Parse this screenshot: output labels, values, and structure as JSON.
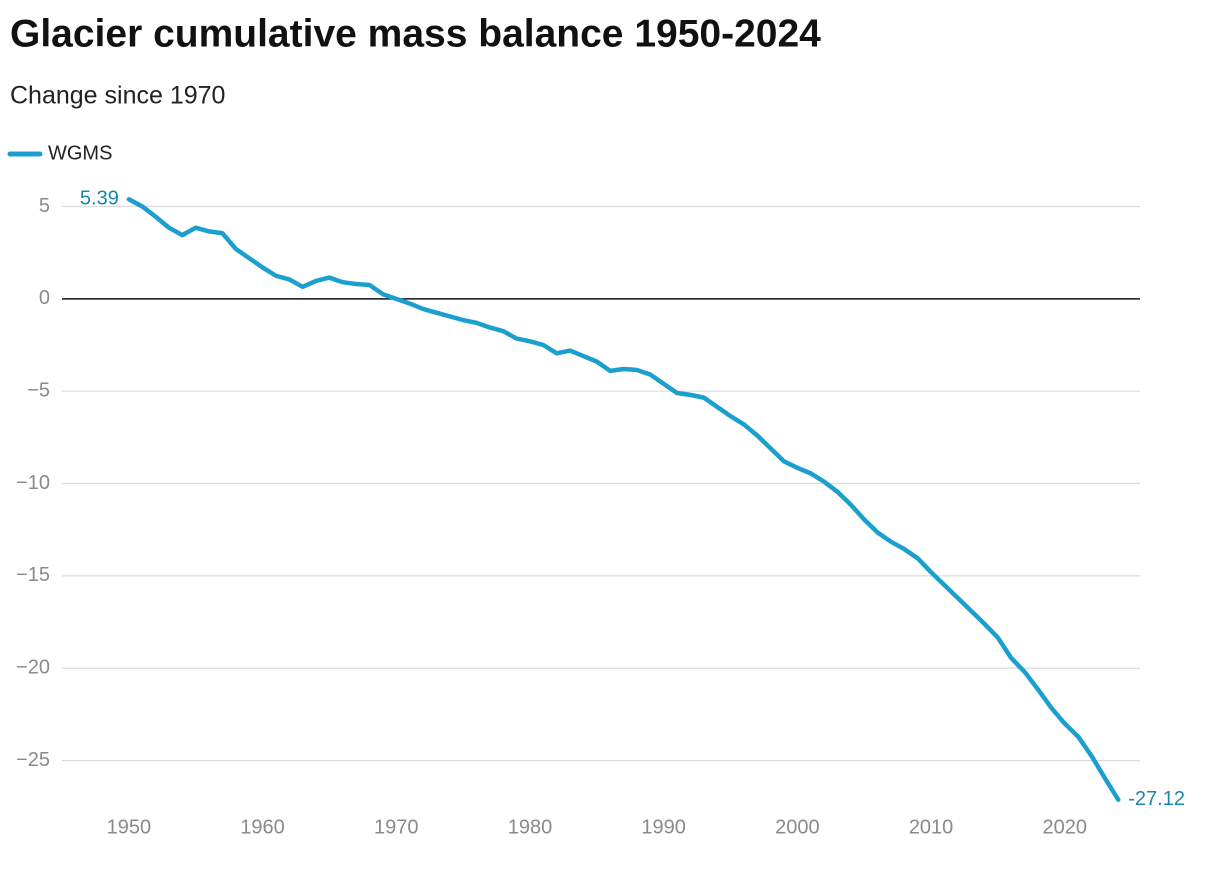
{
  "chart_data": {
    "type": "line",
    "title": "Glacier cumulative mass balance 1950-2024",
    "subtitle": "Change since 1970",
    "x": [
      1950,
      1951,
      1952,
      1953,
      1954,
      1955,
      1956,
      1957,
      1958,
      1959,
      1960,
      1961,
      1962,
      1963,
      1964,
      1965,
      1966,
      1967,
      1968,
      1969,
      1970,
      1971,
      1972,
      1973,
      1974,
      1975,
      1976,
      1977,
      1978,
      1979,
      1980,
      1981,
      1982,
      1983,
      1984,
      1985,
      1986,
      1987,
      1988,
      1989,
      1990,
      1991,
      1992,
      1993,
      1994,
      1995,
      1996,
      1997,
      1998,
      1999,
      2000,
      2001,
      2002,
      2003,
      2004,
      2005,
      2006,
      2007,
      2008,
      2009,
      2010,
      2011,
      2012,
      2013,
      2014,
      2015,
      2016,
      2017,
      2018,
      2019,
      2020,
      2021,
      2022,
      2023,
      2024
    ],
    "series": [
      {
        "name": "WGMS",
        "color": "#1a9fcf",
        "values": [
          5.39,
          5.0,
          4.45,
          3.85,
          3.45,
          3.85,
          3.65,
          3.55,
          2.7,
          2.2,
          1.7,
          1.25,
          1.05,
          0.65,
          0.97,
          1.15,
          0.9,
          0.8,
          0.75,
          0.25,
          0,
          -0.25,
          -0.55,
          -0.75,
          -0.95,
          -1.15,
          -1.3,
          -1.55,
          -1.75,
          -2.15,
          -2.3,
          -2.5,
          -2.95,
          -2.8,
          -3.1,
          -3.4,
          -3.9,
          -3.8,
          -3.85,
          -4.1,
          -4.6,
          -5.1,
          -5.2,
          -5.35,
          -5.85,
          -6.35,
          -6.8,
          -7.4,
          -8.1,
          -8.8,
          -9.15,
          -9.45,
          -9.9,
          -10.45,
          -11.15,
          -11.95,
          -12.65,
          -13.15,
          -13.55,
          -14.05,
          -14.8,
          -15.5,
          -16.2,
          -16.9,
          -17.6,
          -18.35,
          -19.45,
          -20.2,
          -21.15,
          -22.15,
          -23.0,
          -23.7,
          -24.75,
          -25.95,
          -27.12
        ]
      }
    ],
    "xlim": [
      1945,
      2026
    ],
    "xticks": [
      1950,
      1960,
      1970,
      1980,
      1990,
      2000,
      2010,
      2020
    ],
    "ylim": [
      -28,
      6
    ],
    "yticks": [
      5,
      0,
      {
        "value": -5,
        "label": "−5"
      },
      {
        "value": -10,
        "label": "−10"
      },
      {
        "value": -15,
        "label": "−15"
      },
      {
        "value": -20,
        "label": "−20"
      },
      {
        "value": -25,
        "label": "−25"
      }
    ],
    "grid": true
  }
}
